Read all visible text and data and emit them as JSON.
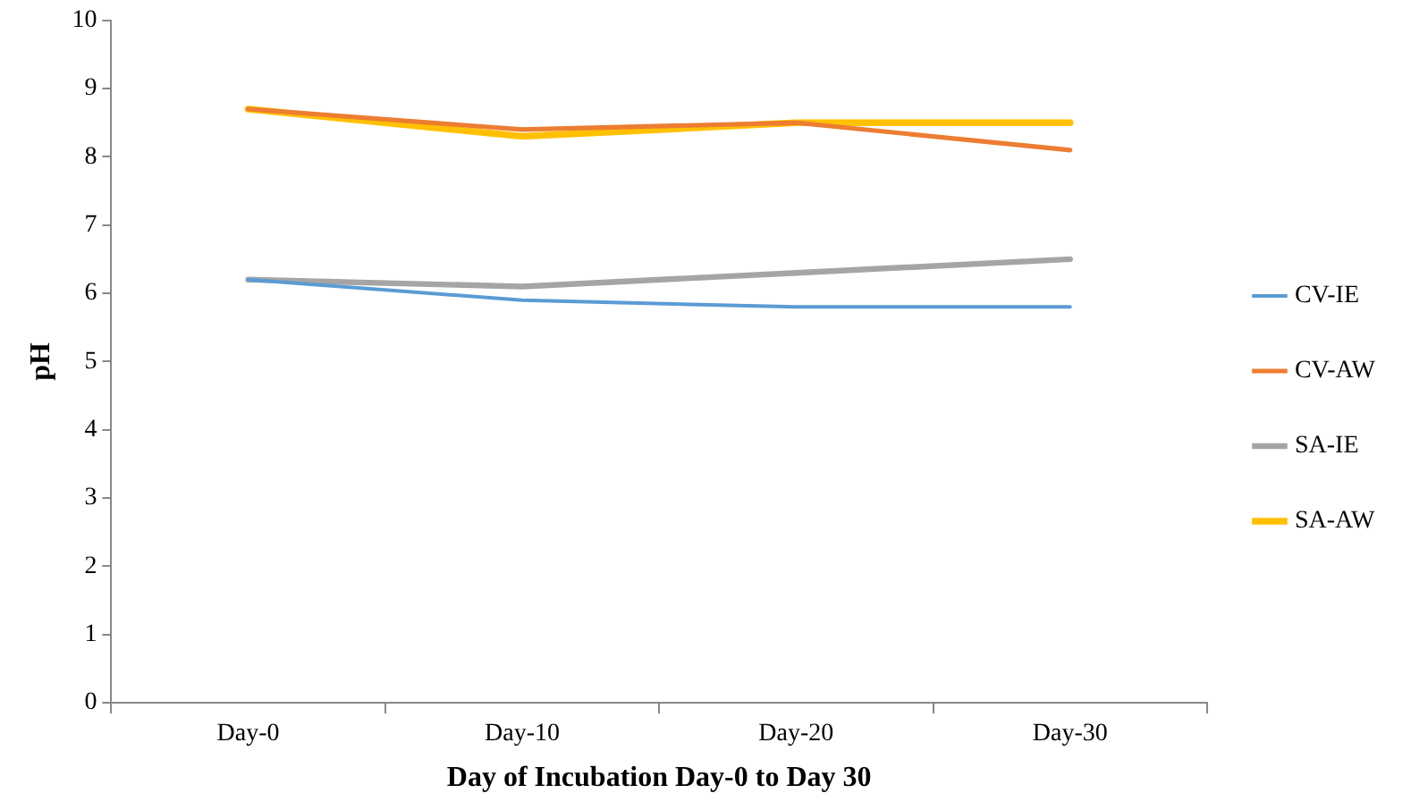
{
  "chart_data": {
    "type": "line",
    "xlabel": "Day of Incubation Day-0 to Day 30",
    "ylabel": "pH",
    "categories": [
      "Day-0",
      "Day-10",
      "Day-20",
      "Day-30"
    ],
    "series": [
      {
        "name": "CV-IE",
        "color": "#5b9bd5",
        "values": [
          6.2,
          5.9,
          5.8,
          5.8
        ]
      },
      {
        "name": "CV-AW",
        "color": "#ed7d31",
        "values": [
          8.7,
          8.4,
          8.5,
          8.1
        ]
      },
      {
        "name": "SA-IE",
        "color": "#a5a5a5",
        "values": [
          6.2,
          6.1,
          6.3,
          6.5
        ]
      },
      {
        "name": "SA-AW",
        "color": "#ffc000",
        "values": [
          8.7,
          8.3,
          8.5,
          8.5
        ]
      }
    ],
    "ylim": [
      0,
      10
    ],
    "yticks": [
      0,
      1,
      2,
      3,
      4,
      5,
      6,
      7,
      8,
      9,
      10
    ],
    "grid": false,
    "legend": "right",
    "marker": "none",
    "line_style": "solid"
  }
}
